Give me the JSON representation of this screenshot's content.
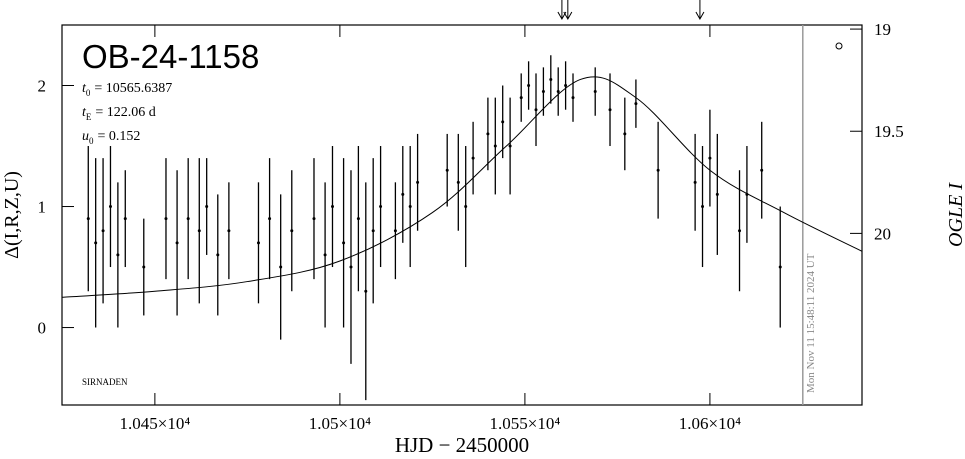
{
  "chart_data": {
    "type": "errorbar",
    "title": "OB-24-1158",
    "params": [
      {
        "symbol": "t",
        "sub": "0",
        "text": "= 10565.6387"
      },
      {
        "symbol": "t",
        "sub": "E",
        "text": "= 122.06 d"
      },
      {
        "symbol": "u",
        "sub": "0",
        "text": "= 0.152"
      }
    ],
    "corner_label": "SIRNADEN",
    "timestamp": "Mon Nov 11 15:48:11 2024 UT",
    "x_label": "HJD − 2450000",
    "y_label": "Δ(I,R,Z,U)",
    "y2_label": "OGLE I",
    "xlim": [
      10424.9,
      10641.1
    ],
    "ylim": [
      -0.64,
      2.5
    ],
    "y2lim": [
      20.84,
      18.98
    ],
    "xticks": [
      {
        "value": 10450,
        "label": "1.045×10⁴"
      },
      {
        "value": 10500,
        "label": "1.05×10⁴"
      },
      {
        "value": 10550,
        "label": "1.055×10⁴"
      },
      {
        "value": 10600,
        "label": "1.06×10⁴"
      }
    ],
    "yticks": [
      0,
      1,
      2
    ],
    "y2ticks": [
      19,
      19.5,
      20
    ],
    "arrows": [
      10560,
      10561.6,
      10597.3
    ],
    "current_date_line": 10625.1,
    "model": {
      "x": [
        10424.9,
        10450,
        10475,
        10500,
        10525,
        10545,
        10565,
        10580,
        10600,
        10620,
        10641.1
      ],
      "values": [
        0.25,
        0.3,
        0.38,
        0.55,
        0.95,
        1.5,
        2.05,
        1.9,
        1.3,
        0.95,
        0.63
      ]
    },
    "data": {
      "x": [
        10432,
        10434,
        10436,
        10438,
        10440,
        10442,
        10447,
        10453,
        10456,
        10459,
        10462,
        10464,
        10467,
        10470,
        10478,
        10481,
        10484,
        10487,
        10493,
        10496,
        10498,
        10501,
        10503,
        10505,
        10507,
        10509,
        10511,
        10515,
        10517,
        10519,
        10521,
        10529,
        10532,
        10534,
        10536,
        10540,
        10542,
        10544,
        10546,
        10549,
        10551,
        10553,
        10555,
        10557,
        10559,
        10561,
        10563,
        10569,
        10573,
        10577,
        10580,
        10586,
        10596,
        10598,
        10600,
        10602,
        10608,
        10610,
        10614,
        10619
      ],
      "values": [
        0.9,
        0.7,
        0.8,
        1.0,
        0.6,
        0.9,
        0.5,
        0.9,
        0.7,
        0.9,
        0.8,
        1.0,
        0.6,
        0.8,
        0.7,
        0.9,
        0.5,
        0.8,
        0.9,
        0.6,
        1.0,
        0.7,
        0.5,
        0.9,
        0.3,
        0.8,
        1.0,
        0.8,
        1.1,
        1.0,
        1.2,
        1.3,
        1.2,
        1.0,
        1.4,
        1.6,
        1.5,
        1.7,
        1.5,
        1.9,
        2.0,
        1.8,
        1.95,
        2.05,
        1.95,
        2.0,
        1.9,
        1.95,
        1.8,
        1.6,
        1.85,
        1.3,
        1.2,
        1.0,
        1.4,
        1.1,
        0.8,
        1.1,
        1.3,
        0.5
      ],
      "errors": [
        0.6,
        0.7,
        0.6,
        0.5,
        0.6,
        0.4,
        0.4,
        0.5,
        0.6,
        0.5,
        0.6,
        0.4,
        0.5,
        0.4,
        0.5,
        0.5,
        0.6,
        0.5,
        0.5,
        0.6,
        0.5,
        0.7,
        0.8,
        0.6,
        0.9,
        0.6,
        0.5,
        0.4,
        0.4,
        0.5,
        0.4,
        0.3,
        0.4,
        0.5,
        0.3,
        0.3,
        0.4,
        0.3,
        0.4,
        0.2,
        0.2,
        0.3,
        0.2,
        0.2,
        0.2,
        0.2,
        0.2,
        0.2,
        0.3,
        0.3,
        0.2,
        0.4,
        0.4,
        0.5,
        0.4,
        0.5,
        0.5,
        0.4,
        0.4,
        0.5
      ]
    }
  }
}
